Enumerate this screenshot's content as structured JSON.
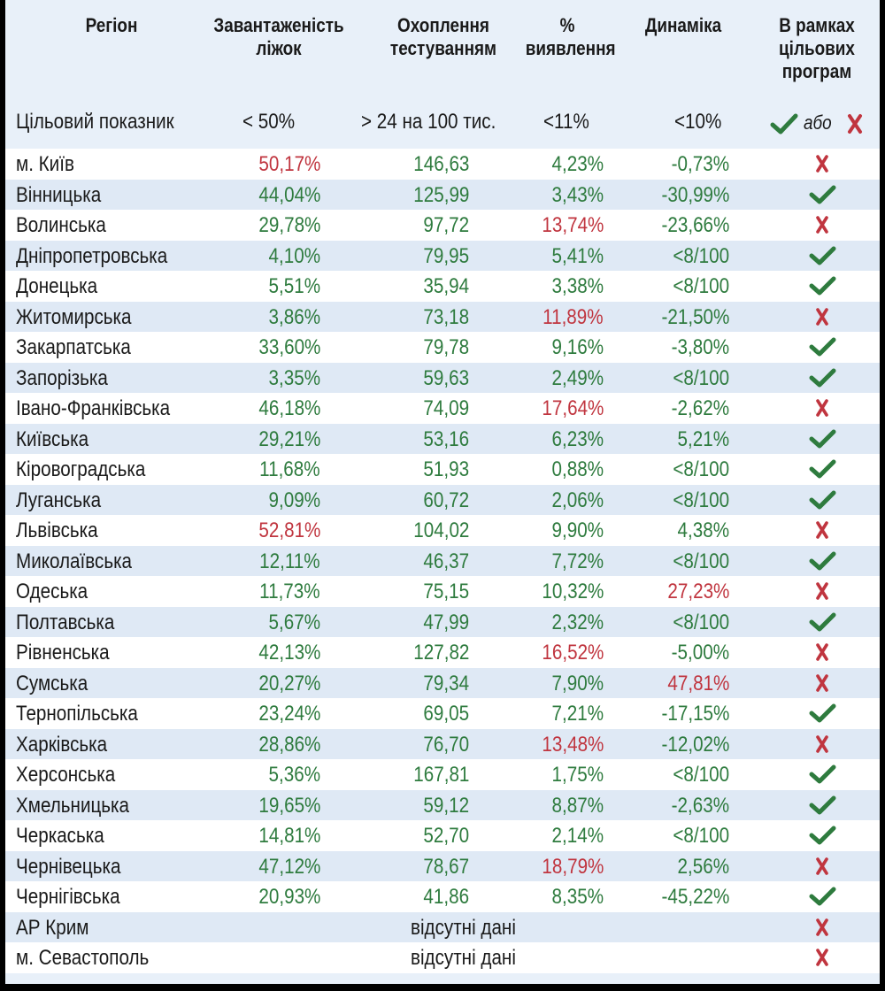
{
  "colors": {
    "good": "#2e7b3e",
    "bad": "#c0353f",
    "bg": "#e8f0f9",
    "row_alt": "#dfe9f5"
  },
  "header": {
    "region": "Регіон",
    "beds": "Завантаженість ліжок",
    "testing": "Охоплення тестуванням",
    "detection": "% виявлення",
    "dynamics": "Динаміка",
    "programs": "В рамках цільових програм"
  },
  "target": {
    "label": "Цільовий показник",
    "beds": "< 50%",
    "testing": "> 24 на 100 тис.",
    "detection": "<11%",
    "dynamics": "<10%",
    "or": "або"
  },
  "rows": [
    {
      "region": "м. Київ",
      "beds": "50,17%",
      "beds_ok": false,
      "testing": "146,63",
      "testing_ok": true,
      "detection": "4,23%",
      "detection_ok": true,
      "dynamics": "-0,73%",
      "dynamics_ok": true,
      "status": "cross-icon"
    },
    {
      "region": "Вінницька",
      "beds": "44,04%",
      "beds_ok": true,
      "testing": "125,99",
      "testing_ok": true,
      "detection": "3,43%",
      "detection_ok": true,
      "dynamics": "-30,99%",
      "dynamics_ok": true,
      "status": "check-icon"
    },
    {
      "region": "Волинська",
      "beds": "29,78%",
      "beds_ok": true,
      "testing": "97,72",
      "testing_ok": true,
      "detection": "13,74%",
      "detection_ok": false,
      "dynamics": "-23,66%",
      "dynamics_ok": true,
      "status": "cross-icon"
    },
    {
      "region": "Дніпропетровська",
      "beds": "4,10%",
      "beds_ok": true,
      "testing": "79,95",
      "testing_ok": true,
      "detection": "5,41%",
      "detection_ok": true,
      "dynamics": "<8/100",
      "dynamics_ok": true,
      "status": "check-icon"
    },
    {
      "region": "Донецька",
      "beds": "5,51%",
      "beds_ok": true,
      "testing": "35,94",
      "testing_ok": true,
      "detection": "3,38%",
      "detection_ok": true,
      "dynamics": "<8/100",
      "dynamics_ok": true,
      "status": "check-icon"
    },
    {
      "region": "Житомирська",
      "beds": "3,86%",
      "beds_ok": true,
      "testing": "73,18",
      "testing_ok": true,
      "detection": "11,89%",
      "detection_ok": false,
      "dynamics": "-21,50%",
      "dynamics_ok": true,
      "status": "cross-icon"
    },
    {
      "region": "Закарпатська",
      "beds": "33,60%",
      "beds_ok": true,
      "testing": "79,78",
      "testing_ok": true,
      "detection": "9,16%",
      "detection_ok": true,
      "dynamics": "-3,80%",
      "dynamics_ok": true,
      "status": "check-icon"
    },
    {
      "region": "Запорізька",
      "beds": "3,35%",
      "beds_ok": true,
      "testing": "59,63",
      "testing_ok": true,
      "detection": "2,49%",
      "detection_ok": true,
      "dynamics": "<8/100",
      "dynamics_ok": true,
      "status": "check-icon"
    },
    {
      "region": "Івано-Франківська",
      "beds": "46,18%",
      "beds_ok": true,
      "testing": "74,09",
      "testing_ok": true,
      "detection": "17,64%",
      "detection_ok": false,
      "dynamics": "-2,62%",
      "dynamics_ok": true,
      "status": "cross-icon"
    },
    {
      "region": "Київська",
      "beds": "29,21%",
      "beds_ok": true,
      "testing": "53,16",
      "testing_ok": true,
      "detection": "6,23%",
      "detection_ok": true,
      "dynamics": "5,21%",
      "dynamics_ok": true,
      "status": "check-icon"
    },
    {
      "region": "Кіровоградська",
      "beds": "11,68%",
      "beds_ok": true,
      "testing": "51,93",
      "testing_ok": true,
      "detection": "0,88%",
      "detection_ok": true,
      "dynamics": "<8/100",
      "dynamics_ok": true,
      "status": "check-icon"
    },
    {
      "region": "Луганська",
      "beds": "9,09%",
      "beds_ok": true,
      "testing": "60,72",
      "testing_ok": true,
      "detection": "2,06%",
      "detection_ok": true,
      "dynamics": "<8/100",
      "dynamics_ok": true,
      "status": "check-icon"
    },
    {
      "region": "Львівська",
      "beds": "52,81%",
      "beds_ok": false,
      "testing": "104,02",
      "testing_ok": true,
      "detection": "9,90%",
      "detection_ok": true,
      "dynamics": "4,38%",
      "dynamics_ok": true,
      "status": "cross-icon"
    },
    {
      "region": "Миколаївська",
      "beds": "12,11%",
      "beds_ok": true,
      "testing": "46,37",
      "testing_ok": true,
      "detection": "7,72%",
      "detection_ok": true,
      "dynamics": "<8/100",
      "dynamics_ok": true,
      "status": "check-icon"
    },
    {
      "region": "Одеська",
      "beds": "11,73%",
      "beds_ok": true,
      "testing": "75,15",
      "testing_ok": true,
      "detection": "10,32%",
      "detection_ok": true,
      "dynamics": "27,23%",
      "dynamics_ok": false,
      "status": "cross-icon"
    },
    {
      "region": "Полтавська",
      "beds": "5,67%",
      "beds_ok": true,
      "testing": "47,99",
      "testing_ok": true,
      "detection": "2,32%",
      "detection_ok": true,
      "dynamics": "<8/100",
      "dynamics_ok": true,
      "status": "check-icon"
    },
    {
      "region": "Рівненська",
      "beds": "42,13%",
      "beds_ok": true,
      "testing": "127,82",
      "testing_ok": true,
      "detection": "16,52%",
      "detection_ok": false,
      "dynamics": "-5,00%",
      "dynamics_ok": true,
      "status": "cross-icon"
    },
    {
      "region": "Сумська",
      "beds": "20,27%",
      "beds_ok": true,
      "testing": "79,34",
      "testing_ok": true,
      "detection": "7,90%",
      "detection_ok": true,
      "dynamics": "47,81%",
      "dynamics_ok": false,
      "status": "cross-icon"
    },
    {
      "region": "Тернопільська",
      "beds": "23,24%",
      "beds_ok": true,
      "testing": "69,05",
      "testing_ok": true,
      "detection": "7,21%",
      "detection_ok": true,
      "dynamics": "-17,15%",
      "dynamics_ok": true,
      "status": "check-icon"
    },
    {
      "region": "Харківська",
      "beds": "28,86%",
      "beds_ok": true,
      "testing": "76,70",
      "testing_ok": true,
      "detection": "13,48%",
      "detection_ok": false,
      "dynamics": "-12,02%",
      "dynamics_ok": true,
      "status": "cross-icon"
    },
    {
      "region": "Херсонська",
      "beds": "5,36%",
      "beds_ok": true,
      "testing": "167,81",
      "testing_ok": true,
      "detection": "1,75%",
      "detection_ok": true,
      "dynamics": "<8/100",
      "dynamics_ok": true,
      "status": "check-icon"
    },
    {
      "region": "Хмельницька",
      "beds": "19,65%",
      "beds_ok": true,
      "testing": "59,12",
      "testing_ok": true,
      "detection": "8,87%",
      "detection_ok": true,
      "dynamics": "-2,63%",
      "dynamics_ok": true,
      "status": "check-icon"
    },
    {
      "region": "Черкаська",
      "beds": "14,81%",
      "beds_ok": true,
      "testing": "52,70",
      "testing_ok": true,
      "detection": "2,14%",
      "detection_ok": true,
      "dynamics": "<8/100",
      "dynamics_ok": true,
      "status": "check-icon"
    },
    {
      "region": "Чернівецька",
      "beds": "47,12%",
      "beds_ok": true,
      "testing": "78,67",
      "testing_ok": true,
      "detection": "18,79%",
      "detection_ok": false,
      "dynamics": "2,56%",
      "dynamics_ok": true,
      "status": "cross-icon"
    },
    {
      "region": "Чернігівська",
      "beds": "20,93%",
      "beds_ok": true,
      "testing": "41,86",
      "testing_ok": true,
      "detection": "8,35%",
      "detection_ok": true,
      "dynamics": "-45,22%",
      "dynamics_ok": true,
      "status": "check-icon"
    },
    {
      "region": "АР Крим",
      "nodata": "відсутні дані",
      "status": "cross-icon"
    },
    {
      "region": "м. Севастополь",
      "nodata": "відсутні дані",
      "status": "cross-icon"
    }
  ]
}
